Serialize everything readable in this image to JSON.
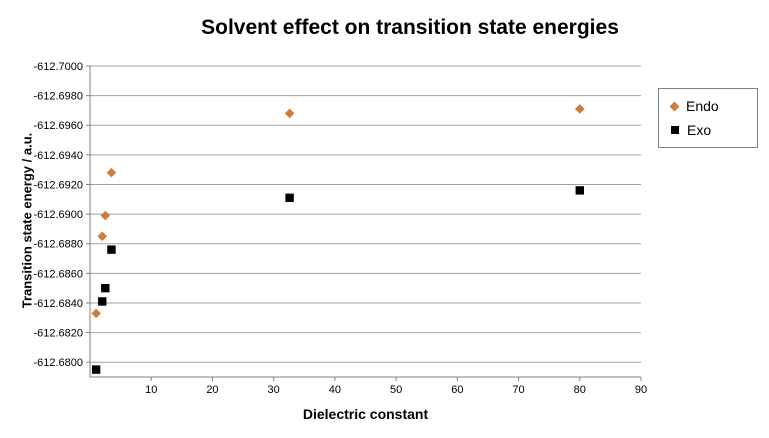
{
  "chart_data": {
    "type": "scatter",
    "title": "Solvent effect on transition state energies",
    "xlabel": "Dielectric constant",
    "ylabel": "Transition state energy / a.u.",
    "xlim": [
      0,
      90
    ],
    "x_ticks": [
      "10",
      "20",
      "30",
      "40",
      "50",
      "60",
      "70",
      "80",
      "90"
    ],
    "ylim": [
      -612.7,
      -612.679
    ],
    "y_ticks": [
      "-612.7000",
      "-612.6980",
      "-612.6960",
      "-612.6940",
      "-612.6920",
      "-612.6900",
      "-612.6880",
      "-612.6860",
      "-612.6840",
      "-612.6820",
      "-612.6800"
    ],
    "grid": "horizontal-only",
    "legend_position": "right",
    "colors": {
      "gridline": "#a0a0a0",
      "axis": "#808080",
      "endo": "#ce7d3b",
      "exo": "#000000"
    },
    "series": [
      {
        "name": "Endo",
        "marker": "diamond",
        "color": "#ce7d3b",
        "points": [
          [
            1,
            -612.6833
          ],
          [
            2,
            -612.6885
          ],
          [
            2.5,
            -612.6899
          ],
          [
            3.5,
            -612.6928
          ],
          [
            32.6,
            -612.6968
          ],
          [
            80,
            -612.6971
          ]
        ]
      },
      {
        "name": "Exo",
        "marker": "square",
        "color": "#000000",
        "points": [
          [
            1,
            -612.6795
          ],
          [
            2,
            -612.6841
          ],
          [
            2.5,
            -612.685
          ],
          [
            3.5,
            -612.6876
          ],
          [
            32.6,
            -612.6911
          ],
          [
            80,
            -612.6916
          ]
        ]
      }
    ]
  }
}
